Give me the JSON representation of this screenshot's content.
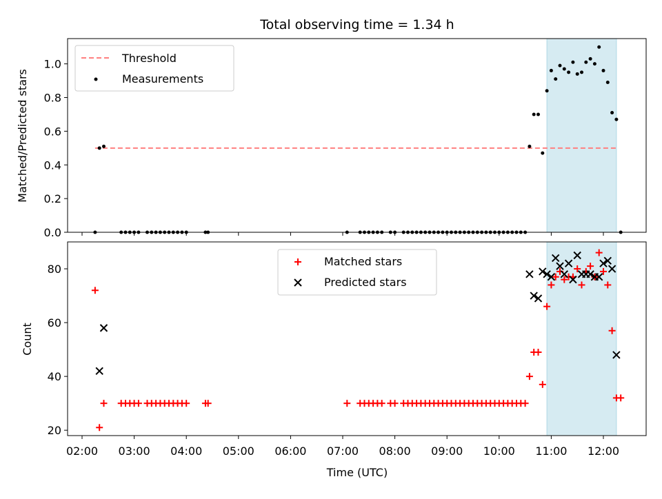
{
  "chart_data": [
    {
      "type": "scatter",
      "title": "Total observing time = 1.34 h",
      "xlabel": "",
      "ylabel": "Matched/Predicted stars",
      "ylim": [
        0,
        1.15
      ],
      "yticks": [
        "0.0",
        "0.2",
        "0.4",
        "0.6",
        "0.8",
        "1.0"
      ],
      "legend": {
        "position": "top-left",
        "entries": [
          "Threshold",
          "Measurements"
        ]
      },
      "highlight_band": {
        "x_start": "10:55",
        "x_end": "12:15",
        "color": "#add8e6"
      },
      "threshold": {
        "name": "Threshold",
        "value": 0.5,
        "x_start": "02:15",
        "x_end": "12:15",
        "color": "#ff7f7f"
      },
      "series": [
        {
          "name": "Measurements",
          "color": "#000000",
          "points": [
            [
              "02:15",
              0.0
            ],
            [
              "02:20",
              0.5
            ],
            [
              "02:25",
              0.51
            ],
            [
              "02:45",
              0.0
            ],
            [
              "02:50",
              0.0
            ],
            [
              "02:55",
              0.0
            ],
            [
              "03:00",
              0.0
            ],
            [
              "03:05",
              0.0
            ],
            [
              "03:15",
              0.0
            ],
            [
              "03:20",
              0.0
            ],
            [
              "03:25",
              0.0
            ],
            [
              "03:30",
              0.0
            ],
            [
              "03:35",
              0.0
            ],
            [
              "03:40",
              0.0
            ],
            [
              "03:45",
              0.0
            ],
            [
              "03:50",
              0.0
            ],
            [
              "03:55",
              0.0
            ],
            [
              "04:00",
              0.0
            ],
            [
              "04:22",
              0.0
            ],
            [
              "04:25",
              0.0
            ],
            [
              "07:05",
              0.0
            ],
            [
              "07:20",
              0.0
            ],
            [
              "07:25",
              0.0
            ],
            [
              "07:30",
              0.0
            ],
            [
              "07:35",
              0.0
            ],
            [
              "07:40",
              0.0
            ],
            [
              "07:45",
              0.0
            ],
            [
              "07:55",
              0.0
            ],
            [
              "08:00",
              0.0
            ],
            [
              "08:10",
              0.0
            ],
            [
              "08:15",
              0.0
            ],
            [
              "08:20",
              0.0
            ],
            [
              "08:25",
              0.0
            ],
            [
              "08:30",
              0.0
            ],
            [
              "08:35",
              0.0
            ],
            [
              "08:40",
              0.0
            ],
            [
              "08:45",
              0.0
            ],
            [
              "08:50",
              0.0
            ],
            [
              "08:55",
              0.0
            ],
            [
              "09:00",
              0.0
            ],
            [
              "09:05",
              0.0
            ],
            [
              "09:10",
              0.0
            ],
            [
              "09:15",
              0.0
            ],
            [
              "09:20",
              0.0
            ],
            [
              "09:25",
              0.0
            ],
            [
              "09:30",
              0.0
            ],
            [
              "09:35",
              0.0
            ],
            [
              "09:40",
              0.0
            ],
            [
              "09:45",
              0.0
            ],
            [
              "09:50",
              0.0
            ],
            [
              "09:55",
              0.0
            ],
            [
              "10:00",
              0.0
            ],
            [
              "10:05",
              0.0
            ],
            [
              "10:10",
              0.0
            ],
            [
              "10:15",
              0.0
            ],
            [
              "10:20",
              0.0
            ],
            [
              "10:25",
              0.0
            ],
            [
              "10:30",
              0.0
            ],
            [
              "10:35",
              0.51
            ],
            [
              "10:40",
              0.7
            ],
            [
              "10:45",
              0.7
            ],
            [
              "10:50",
              0.47
            ],
            [
              "10:55",
              0.84
            ],
            [
              "11:00",
              0.96
            ],
            [
              "11:05",
              0.91
            ],
            [
              "11:10",
              0.99
            ],
            [
              "11:15",
              0.97
            ],
            [
              "11:20",
              0.95
            ],
            [
              "11:25",
              1.01
            ],
            [
              "11:30",
              0.94
            ],
            [
              "11:35",
              0.95
            ],
            [
              "11:40",
              1.01
            ],
            [
              "11:45",
              1.03
            ],
            [
              "11:50",
              1.0
            ],
            [
              "11:55",
              1.1
            ],
            [
              "12:00",
              0.96
            ],
            [
              "12:05",
              0.89
            ],
            [
              "12:10",
              0.71
            ],
            [
              "12:15",
              0.67
            ],
            [
              "12:20",
              0.0
            ]
          ]
        }
      ]
    },
    {
      "type": "scatter",
      "title": "",
      "xlabel": "Time (UTC)",
      "ylabel": "Count",
      "ylim": [
        18,
        90
      ],
      "yticks": [
        "20",
        "40",
        "60",
        "80"
      ],
      "xticks": [
        "02:00",
        "03:00",
        "04:00",
        "05:00",
        "06:00",
        "07:00",
        "08:00",
        "09:00",
        "10:00",
        "11:00",
        "12:00"
      ],
      "legend": {
        "position": "top-center",
        "entries": [
          "Matched stars",
          "Predicted stars"
        ]
      },
      "highlight_band": {
        "x_start": "10:55",
        "x_end": "12:15",
        "color": "#add8e6"
      },
      "series": [
        {
          "name": "Matched stars",
          "marker": "plus",
          "color": "#ff0000",
          "points": [
            [
              "02:15",
              72
            ],
            [
              "02:20",
              21
            ],
            [
              "02:25",
              30
            ],
            [
              "02:45",
              30
            ],
            [
              "02:50",
              30
            ],
            [
              "02:55",
              30
            ],
            [
              "03:00",
              30
            ],
            [
              "03:05",
              30
            ],
            [
              "03:15",
              30
            ],
            [
              "03:20",
              30
            ],
            [
              "03:25",
              30
            ],
            [
              "03:30",
              30
            ],
            [
              "03:35",
              30
            ],
            [
              "03:40",
              30
            ],
            [
              "03:45",
              30
            ],
            [
              "03:50",
              30
            ],
            [
              "03:55",
              30
            ],
            [
              "04:00",
              30
            ],
            [
              "04:22",
              30
            ],
            [
              "04:25",
              30
            ],
            [
              "07:05",
              30
            ],
            [
              "07:20",
              30
            ],
            [
              "07:25",
              30
            ],
            [
              "07:30",
              30
            ],
            [
              "07:35",
              30
            ],
            [
              "07:40",
              30
            ],
            [
              "07:45",
              30
            ],
            [
              "07:55",
              30
            ],
            [
              "08:00",
              30
            ],
            [
              "08:10",
              30
            ],
            [
              "08:15",
              30
            ],
            [
              "08:20",
              30
            ],
            [
              "08:25",
              30
            ],
            [
              "08:30",
              30
            ],
            [
              "08:35",
              30
            ],
            [
              "08:40",
              30
            ],
            [
              "08:45",
              30
            ],
            [
              "08:50",
              30
            ],
            [
              "08:55",
              30
            ],
            [
              "09:00",
              30
            ],
            [
              "09:05",
              30
            ],
            [
              "09:10",
              30
            ],
            [
              "09:15",
              30
            ],
            [
              "09:20",
              30
            ],
            [
              "09:25",
              30
            ],
            [
              "09:30",
              30
            ],
            [
              "09:35",
              30
            ],
            [
              "09:40",
              30
            ],
            [
              "09:45",
              30
            ],
            [
              "09:50",
              30
            ],
            [
              "09:55",
              30
            ],
            [
              "10:00",
              30
            ],
            [
              "10:05",
              30
            ],
            [
              "10:10",
              30
            ],
            [
              "10:15",
              30
            ],
            [
              "10:20",
              30
            ],
            [
              "10:25",
              30
            ],
            [
              "10:30",
              30
            ],
            [
              "10:35",
              40
            ],
            [
              "10:40",
              49
            ],
            [
              "10:45",
              49
            ],
            [
              "10:50",
              37
            ],
            [
              "10:55",
              66
            ],
            [
              "11:00",
              74
            ],
            [
              "11:05",
              77
            ],
            [
              "11:10",
              79
            ],
            [
              "11:15",
              76
            ],
            [
              "11:20",
              77
            ],
            [
              "11:25",
              77
            ],
            [
              "11:30",
              80
            ],
            [
              "11:35",
              74
            ],
            [
              "11:40",
              79
            ],
            [
              "11:45",
              81
            ],
            [
              "11:50",
              77
            ],
            [
              "11:55",
              86
            ],
            [
              "12:00",
              79
            ],
            [
              "12:05",
              74
            ],
            [
              "12:10",
              57
            ],
            [
              "12:15",
              32
            ],
            [
              "12:20",
              32
            ]
          ]
        },
        {
          "name": "Predicted stars",
          "marker": "x",
          "color": "#000000",
          "points": [
            [
              "02:20",
              42
            ],
            [
              "02:25",
              58
            ],
            [
              "10:35",
              78
            ],
            [
              "10:40",
              70
            ],
            [
              "10:45",
              69
            ],
            [
              "10:50",
              79
            ],
            [
              "10:55",
              78
            ],
            [
              "11:00",
              77
            ],
            [
              "11:05",
              84
            ],
            [
              "11:10",
              81
            ],
            [
              "11:15",
              78
            ],
            [
              "11:20",
              82
            ],
            [
              "11:25",
              76
            ],
            [
              "11:30",
              85
            ],
            [
              "11:35",
              78
            ],
            [
              "11:40",
              78
            ],
            [
              "11:45",
              78
            ],
            [
              "11:50",
              77
            ],
            [
              "11:55",
              77
            ],
            [
              "12:00",
              82
            ],
            [
              "12:05",
              83
            ],
            [
              "12:10",
              80
            ],
            [
              "12:15",
              48
            ]
          ]
        }
      ]
    }
  ]
}
